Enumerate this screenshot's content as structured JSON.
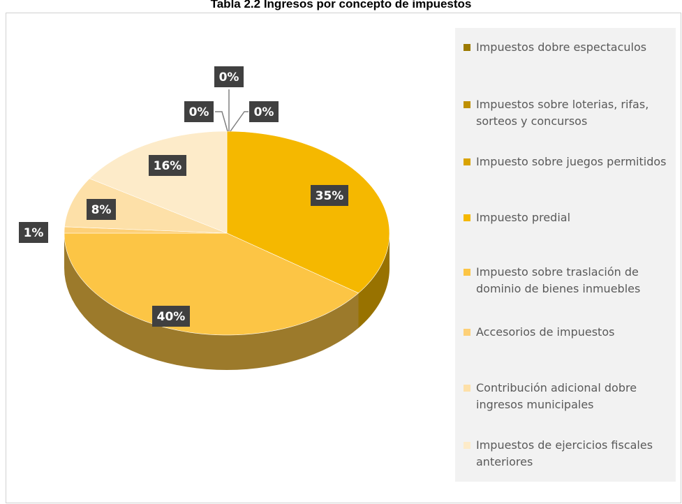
{
  "chart_data": {
    "type": "pie",
    "title": "Tabla 2.2 Ingresos por concepto de impuestos",
    "categories": [
      "Impuestos dobre espectaculos",
      "Impuestos sobre loterias, rifas, sorteos y concursos",
      "Impuesto sobre juegos permitidos",
      "Impuesto predial",
      "Impuesto sobre traslación de dominio de bienes inmuebles",
      "Accesorios de impuestos",
      "Contribución adicional dobre ingresos municipales",
      "Impuestos de ejercicios fiscales anteriores"
    ],
    "values": [
      0,
      0,
      0,
      35,
      40,
      1,
      8,
      16
    ],
    "value_labels": [
      "0%",
      "0%",
      "0%",
      "35%",
      "40%",
      "1%",
      "8%",
      "16%"
    ],
    "colors": [
      "#9c7a00",
      "#bf9000",
      "#d9a300",
      "#f5b800",
      "#fcc545",
      "#fdd078",
      "#fde0a8",
      "#fdebc9"
    ],
    "legend": "right"
  }
}
